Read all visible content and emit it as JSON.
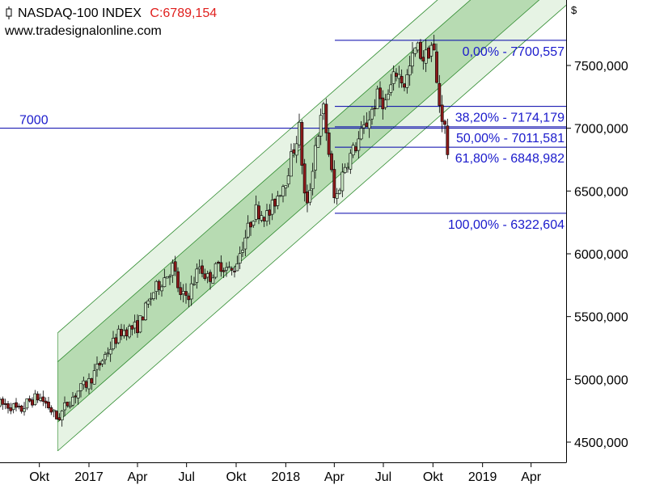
{
  "header": {
    "title": "NASDAQ-100 INDEX",
    "close_label": "C:6789,154",
    "source": "www.tradesignalonline.com",
    "currency_symbol": "$"
  },
  "colors": {
    "channel_outer": "#e6f3e4",
    "channel_inner": "#b7dbb2",
    "channel_line": "#2e8b2e",
    "fib_line": "#0000aa",
    "fib_text": "#1a1acc",
    "bull_candle": "#c9e6c4",
    "bear_candle": "#8b1a1a",
    "close_text": "#e0201e"
  },
  "chart_data": {
    "type": "candlestick",
    "title": "NASDAQ-100 INDEX",
    "last_close": 6789.154,
    "ylim": [
      4300,
      7900
    ],
    "y_ticks": [
      4500,
      5000,
      5500,
      6000,
      6500,
      7000,
      7500
    ],
    "y_tick_labels": [
      "4500,000",
      "5000,000",
      "5500,000",
      "6000,000",
      "6500,000",
      "7000,000",
      "7500,000"
    ],
    "x_tick_labels": [
      "Okt",
      "2017",
      "Apr",
      "Jul",
      "Okt",
      "2018",
      "Apr",
      "Jul",
      "Okt",
      "2019",
      "Apr"
    ],
    "x_tick_dates": [
      "2016-10-01",
      "2017-01-01",
      "2017-04-01",
      "2017-07-01",
      "2017-10-01",
      "2018-01-01",
      "2018-04-01",
      "2018-07-01",
      "2018-10-01",
      "2019-01-01",
      "2019-04-01"
    ],
    "x_range": [
      "2016-07-20",
      "2019-06-05"
    ],
    "horizontal_line": {
      "value": 7000,
      "label": "7000"
    },
    "fibonacci": {
      "start": "2018-04-02",
      "end": "2019-06-05",
      "levels": [
        {
          "pct": "0,00%",
          "value": 7700.557,
          "label": "0,00% - 7700,557"
        },
        {
          "pct": "38,20%",
          "value": 7174.179,
          "label": "38,20% - 7174,179"
        },
        {
          "pct": "50,00%",
          "value": 7011.581,
          "label": "50,00% - 7011,581"
        },
        {
          "pct": "61,80%",
          "value": 6848.982,
          "label": "61,80% - 6848,982"
        },
        {
          "pct": "100,00%",
          "value": 6322.604,
          "label": "100,00% - 6322,604"
        }
      ]
    },
    "regression_channel": {
      "start": "2016-11-04",
      "end": "2019-06-05",
      "start_value": 4900,
      "end_value": 8450,
      "outer_offset": 470,
      "inner_offset": 240
    },
    "price_path": [
      [
        "2016-07-20",
        4800
      ],
      [
        "2016-08-10",
        4790
      ],
      [
        "2016-08-25",
        4740
      ],
      [
        "2016-09-10",
        4820
      ],
      [
        "2016-09-30",
        4860
      ],
      [
        "2016-10-15",
        4800
      ],
      [
        "2016-11-04",
        4680
      ],
      [
        "2016-11-20",
        4800
      ],
      [
        "2016-12-10",
        4900
      ],
      [
        "2017-01-01",
        4980
      ],
      [
        "2017-02-01",
        5200
      ],
      [
        "2017-03-01",
        5380
      ],
      [
        "2017-04-01",
        5420
      ],
      [
        "2017-05-01",
        5700
      ],
      [
        "2017-06-06",
        5900
      ],
      [
        "2017-06-20",
        5650
      ],
      [
        "2017-07-05",
        5680
      ],
      [
        "2017-07-25",
        5900
      ],
      [
        "2017-08-10",
        5800
      ],
      [
        "2017-09-01",
        5920
      ],
      [
        "2017-09-25",
        5850
      ],
      [
        "2017-10-15",
        6100
      ],
      [
        "2017-11-05",
        6350
      ],
      [
        "2017-11-30",
        6300
      ],
      [
        "2017-12-15",
        6450
      ],
      [
        "2018-01-01",
        6600
      ],
      [
        "2018-01-26",
        7000
      ],
      [
        "2018-02-08",
        6300
      ],
      [
        "2018-02-26",
        6900
      ],
      [
        "2018-03-12",
        7150
      ],
      [
        "2018-03-28",
        6600
      ],
      [
        "2018-04-02",
        6400
      ],
      [
        "2018-04-20",
        6700
      ],
      [
        "2018-05-10",
        6850
      ],
      [
        "2018-06-01",
        7050
      ],
      [
        "2018-06-20",
        7250
      ],
      [
        "2018-07-05",
        7200
      ],
      [
        "2018-07-25",
        7450
      ],
      [
        "2018-08-10",
        7350
      ],
      [
        "2018-08-31",
        7650
      ],
      [
        "2018-09-15",
        7550
      ],
      [
        "2018-10-01",
        7690
      ],
      [
        "2018-10-10",
        7250
      ],
      [
        "2018-10-18",
        7100
      ],
      [
        "2018-10-24",
        6980
      ],
      [
        "2018-10-29",
        6789
      ]
    ]
  }
}
